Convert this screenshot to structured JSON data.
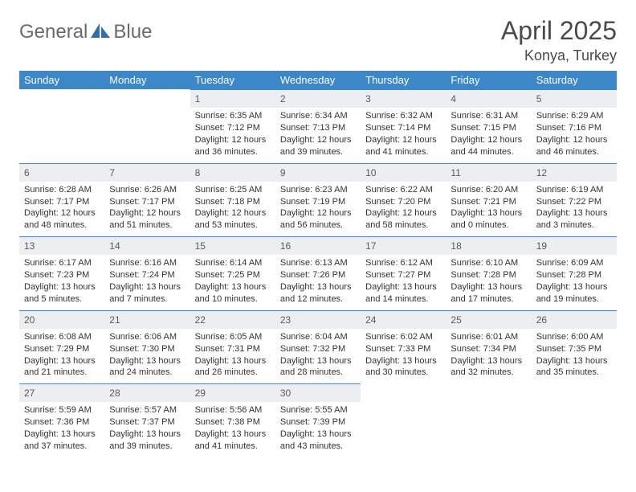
{
  "brand": {
    "name1": "General",
    "name2": "Blue"
  },
  "title": "April 2025",
  "location": "Konya, Turkey",
  "colors": {
    "header_bg": "#3b87c8",
    "header_text": "#ffffff",
    "daynum_bg": "#eceef0",
    "body_text": "#333333",
    "title_text": "#4a4a4a",
    "rule": "#3b87c8"
  },
  "typography": {
    "title_fontsize": 32,
    "subtitle_fontsize": 18,
    "weekday_fontsize": 13,
    "cell_fontsize": 11
  },
  "weekdays": [
    "Sunday",
    "Monday",
    "Tuesday",
    "Wednesday",
    "Thursday",
    "Friday",
    "Saturday"
  ],
  "weeks": [
    [
      null,
      null,
      {
        "day": "1",
        "sunrise": "Sunrise: 6:35 AM",
        "sunset": "Sunset: 7:12 PM",
        "daylight": "Daylight: 12 hours and 36 minutes."
      },
      {
        "day": "2",
        "sunrise": "Sunrise: 6:34 AM",
        "sunset": "Sunset: 7:13 PM",
        "daylight": "Daylight: 12 hours and 39 minutes."
      },
      {
        "day": "3",
        "sunrise": "Sunrise: 6:32 AM",
        "sunset": "Sunset: 7:14 PM",
        "daylight": "Daylight: 12 hours and 41 minutes."
      },
      {
        "day": "4",
        "sunrise": "Sunrise: 6:31 AM",
        "sunset": "Sunset: 7:15 PM",
        "daylight": "Daylight: 12 hours and 44 minutes."
      },
      {
        "day": "5",
        "sunrise": "Sunrise: 6:29 AM",
        "sunset": "Sunset: 7:16 PM",
        "daylight": "Daylight: 12 hours and 46 minutes."
      }
    ],
    [
      {
        "day": "6",
        "sunrise": "Sunrise: 6:28 AM",
        "sunset": "Sunset: 7:17 PM",
        "daylight": "Daylight: 12 hours and 48 minutes."
      },
      {
        "day": "7",
        "sunrise": "Sunrise: 6:26 AM",
        "sunset": "Sunset: 7:17 PM",
        "daylight": "Daylight: 12 hours and 51 minutes."
      },
      {
        "day": "8",
        "sunrise": "Sunrise: 6:25 AM",
        "sunset": "Sunset: 7:18 PM",
        "daylight": "Daylight: 12 hours and 53 minutes."
      },
      {
        "day": "9",
        "sunrise": "Sunrise: 6:23 AM",
        "sunset": "Sunset: 7:19 PM",
        "daylight": "Daylight: 12 hours and 56 minutes."
      },
      {
        "day": "10",
        "sunrise": "Sunrise: 6:22 AM",
        "sunset": "Sunset: 7:20 PM",
        "daylight": "Daylight: 12 hours and 58 minutes."
      },
      {
        "day": "11",
        "sunrise": "Sunrise: 6:20 AM",
        "sunset": "Sunset: 7:21 PM",
        "daylight": "Daylight: 13 hours and 0 minutes."
      },
      {
        "day": "12",
        "sunrise": "Sunrise: 6:19 AM",
        "sunset": "Sunset: 7:22 PM",
        "daylight": "Daylight: 13 hours and 3 minutes."
      }
    ],
    [
      {
        "day": "13",
        "sunrise": "Sunrise: 6:17 AM",
        "sunset": "Sunset: 7:23 PM",
        "daylight": "Daylight: 13 hours and 5 minutes."
      },
      {
        "day": "14",
        "sunrise": "Sunrise: 6:16 AM",
        "sunset": "Sunset: 7:24 PM",
        "daylight": "Daylight: 13 hours and 7 minutes."
      },
      {
        "day": "15",
        "sunrise": "Sunrise: 6:14 AM",
        "sunset": "Sunset: 7:25 PM",
        "daylight": "Daylight: 13 hours and 10 minutes."
      },
      {
        "day": "16",
        "sunrise": "Sunrise: 6:13 AM",
        "sunset": "Sunset: 7:26 PM",
        "daylight": "Daylight: 13 hours and 12 minutes."
      },
      {
        "day": "17",
        "sunrise": "Sunrise: 6:12 AM",
        "sunset": "Sunset: 7:27 PM",
        "daylight": "Daylight: 13 hours and 14 minutes."
      },
      {
        "day": "18",
        "sunrise": "Sunrise: 6:10 AM",
        "sunset": "Sunset: 7:28 PM",
        "daylight": "Daylight: 13 hours and 17 minutes."
      },
      {
        "day": "19",
        "sunrise": "Sunrise: 6:09 AM",
        "sunset": "Sunset: 7:28 PM",
        "daylight": "Daylight: 13 hours and 19 minutes."
      }
    ],
    [
      {
        "day": "20",
        "sunrise": "Sunrise: 6:08 AM",
        "sunset": "Sunset: 7:29 PM",
        "daylight": "Daylight: 13 hours and 21 minutes."
      },
      {
        "day": "21",
        "sunrise": "Sunrise: 6:06 AM",
        "sunset": "Sunset: 7:30 PM",
        "daylight": "Daylight: 13 hours and 24 minutes."
      },
      {
        "day": "22",
        "sunrise": "Sunrise: 6:05 AM",
        "sunset": "Sunset: 7:31 PM",
        "daylight": "Daylight: 13 hours and 26 minutes."
      },
      {
        "day": "23",
        "sunrise": "Sunrise: 6:04 AM",
        "sunset": "Sunset: 7:32 PM",
        "daylight": "Daylight: 13 hours and 28 minutes."
      },
      {
        "day": "24",
        "sunrise": "Sunrise: 6:02 AM",
        "sunset": "Sunset: 7:33 PM",
        "daylight": "Daylight: 13 hours and 30 minutes."
      },
      {
        "day": "25",
        "sunrise": "Sunrise: 6:01 AM",
        "sunset": "Sunset: 7:34 PM",
        "daylight": "Daylight: 13 hours and 32 minutes."
      },
      {
        "day": "26",
        "sunrise": "Sunrise: 6:00 AM",
        "sunset": "Sunset: 7:35 PM",
        "daylight": "Daylight: 13 hours and 35 minutes."
      }
    ],
    [
      {
        "day": "27",
        "sunrise": "Sunrise: 5:59 AM",
        "sunset": "Sunset: 7:36 PM",
        "daylight": "Daylight: 13 hours and 37 minutes."
      },
      {
        "day": "28",
        "sunrise": "Sunrise: 5:57 AM",
        "sunset": "Sunset: 7:37 PM",
        "daylight": "Daylight: 13 hours and 39 minutes."
      },
      {
        "day": "29",
        "sunrise": "Sunrise: 5:56 AM",
        "sunset": "Sunset: 7:38 PM",
        "daylight": "Daylight: 13 hours and 41 minutes."
      },
      {
        "day": "30",
        "sunrise": "Sunrise: 5:55 AM",
        "sunset": "Sunset: 7:39 PM",
        "daylight": "Daylight: 13 hours and 43 minutes."
      },
      null,
      null,
      null
    ]
  ]
}
